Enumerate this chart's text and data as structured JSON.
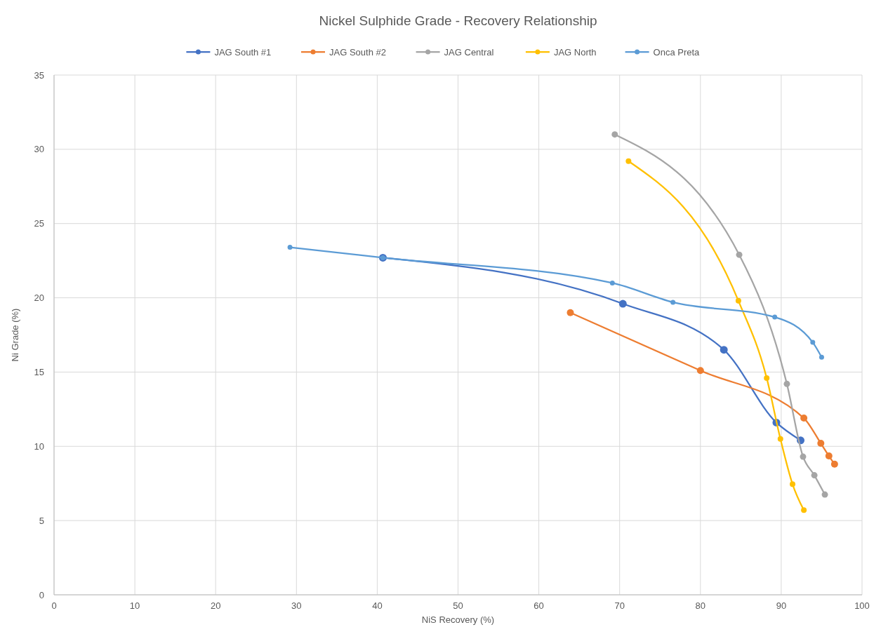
{
  "chart_data": {
    "type": "line",
    "title": "Nickel Sulphide Grade - Recovery Relationship",
    "xlabel": "NiS Recovery (%)",
    "ylabel": "Ni Grade (%)",
    "xlim": [
      0,
      100
    ],
    "xticks": [
      0,
      10,
      20,
      30,
      40,
      50,
      60,
      70,
      80,
      90,
      100
    ],
    "ylim": [
      0,
      35
    ],
    "yticks": [
      0,
      5,
      10,
      15,
      20,
      25,
      30,
      35
    ],
    "grid": true,
    "legend": "top",
    "marker": "circle",
    "line_style": "solid",
    "series": [
      {
        "name": "JAG South #1",
        "color": "#4472c4",
        "x": [
          40.7,
          70.4,
          82.9,
          89.4,
          92.4
        ],
        "values": [
          22.7,
          19.6,
          16.5,
          11.6,
          10.4
        ]
      },
      {
        "name": "JAG South #2",
        "color": "#ed7d31",
        "x": [
          63.9,
          80.0,
          92.8,
          94.9,
          95.9,
          96.6
        ],
        "values": [
          19.0,
          15.1,
          11.9,
          10.2,
          9.35,
          8.8
        ]
      },
      {
        "name": "JAG Central",
        "color": "#a5a5a5",
        "x": [
          69.4,
          84.8,
          90.7,
          92.7,
          94.1,
          95.4
        ],
        "values": [
          31.0,
          22.9,
          14.2,
          9.3,
          8.05,
          6.75
        ]
      },
      {
        "name": "JAG North",
        "color": "#ffc000",
        "x": [
          71.1,
          84.7,
          88.2,
          89.9,
          91.4,
          92.8
        ],
        "values": [
          29.2,
          19.8,
          14.6,
          10.5,
          7.45,
          5.7
        ]
      },
      {
        "name": "Onca Preta",
        "color": "#5b9bd5",
        "x": [
          29.2,
          40.7,
          69.1,
          76.6,
          89.2,
          93.9,
          95.0
        ],
        "values": [
          23.4,
          22.7,
          21.0,
          19.7,
          18.7,
          17.0,
          16.0
        ]
      }
    ]
  }
}
